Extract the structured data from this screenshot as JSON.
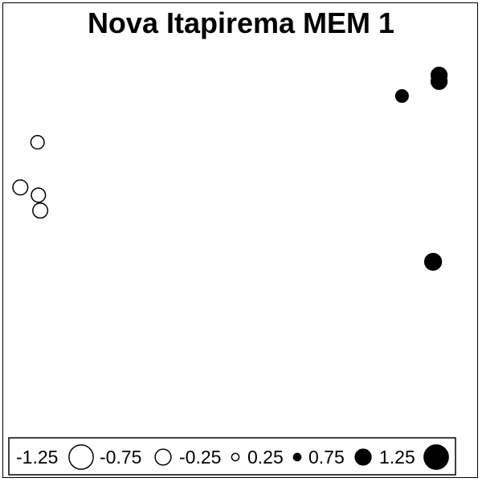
{
  "chart_data": {
    "type": "scatter",
    "title": "Nova Itapirema MEM 1",
    "xlabel": "",
    "ylabel": "",
    "xlim": [
      0,
      100
    ],
    "ylim": [
      0,
      100
    ],
    "grid": false,
    "legend_placement": "bottom",
    "points": [
      {
        "x": 6.0,
        "y": 75.6,
        "value": -0.6
      },
      {
        "x": 2.3,
        "y": 63.9,
        "value": -0.7
      },
      {
        "x": 6.2,
        "y": 61.9,
        "value": -0.65
      },
      {
        "x": 6.6,
        "y": 57.9,
        "value": -0.7
      },
      {
        "x": 84.5,
        "y": 87.6,
        "value": 0.55
      },
      {
        "x": 92.5,
        "y": 91.4,
        "value": 0.75
      },
      {
        "x": 92.5,
        "y": 93.0,
        "value": 0.75
      },
      {
        "x": 91.2,
        "y": 44.6,
        "value": 0.8
      }
    ],
    "legend": {
      "entries": [
        {
          "label": "-1.25",
          "value": -1.25
        },
        {
          "label": "-0.75",
          "value": -0.75
        },
        {
          "label": "-0.25",
          "value": -0.25
        },
        {
          "label": "0.25",
          "value": 0.25
        },
        {
          "label": "0.75",
          "value": 0.75
        },
        {
          "label": "1.25",
          "value": 1.25
        }
      ]
    }
  },
  "colors": {
    "positive_fill": "#000000",
    "negative_fill": "#ffffff",
    "stroke": "#000000"
  }
}
